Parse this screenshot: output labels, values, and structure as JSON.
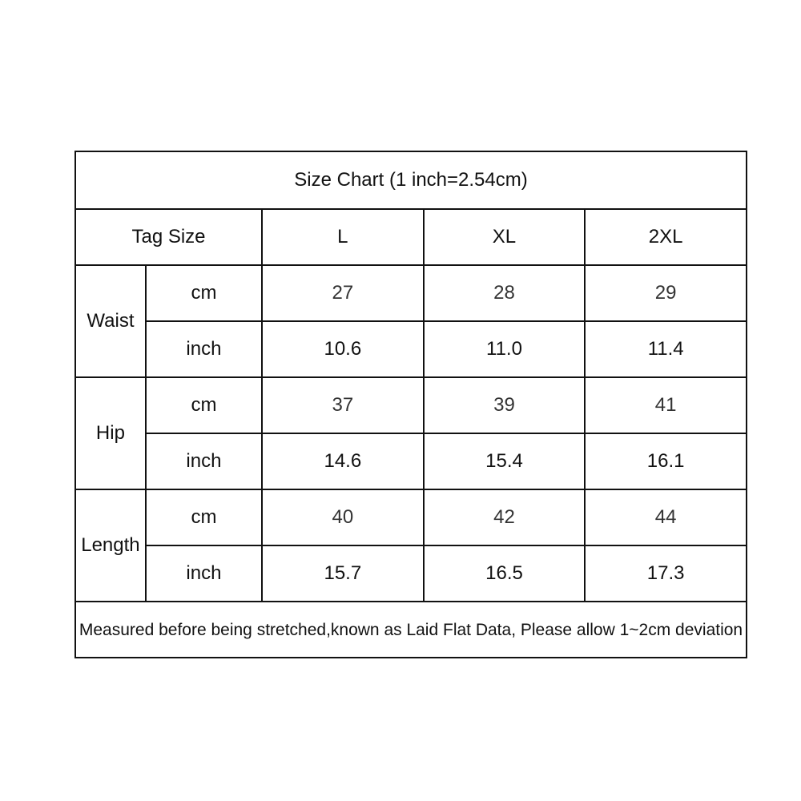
{
  "title": "Size Chart (1 inch=2.54cm)",
  "header": {
    "label": "Tag Size",
    "sizes": [
      "L",
      "XL",
      "2XL"
    ]
  },
  "groups": [
    {
      "name": "Waist",
      "rows": [
        {
          "unit": "cm",
          "values": [
            "27",
            "28",
            "29"
          ]
        },
        {
          "unit": "inch",
          "values": [
            "10.6",
            "11.0",
            "11.4"
          ]
        }
      ]
    },
    {
      "name": "Hip",
      "rows": [
        {
          "unit": "cm",
          "values": [
            "37",
            "39",
            "41"
          ]
        },
        {
          "unit": "inch",
          "values": [
            "14.6",
            "15.4",
            "16.1"
          ]
        }
      ]
    },
    {
      "name": "Length",
      "rows": [
        {
          "unit": "cm",
          "values": [
            "40",
            "42",
            "44"
          ]
        },
        {
          "unit": "inch",
          "values": [
            "15.7",
            "16.5",
            "17.3"
          ]
        }
      ]
    }
  ],
  "footer": "Measured before being stretched,known as Laid Flat Data, Please allow 1~2cm deviation"
}
